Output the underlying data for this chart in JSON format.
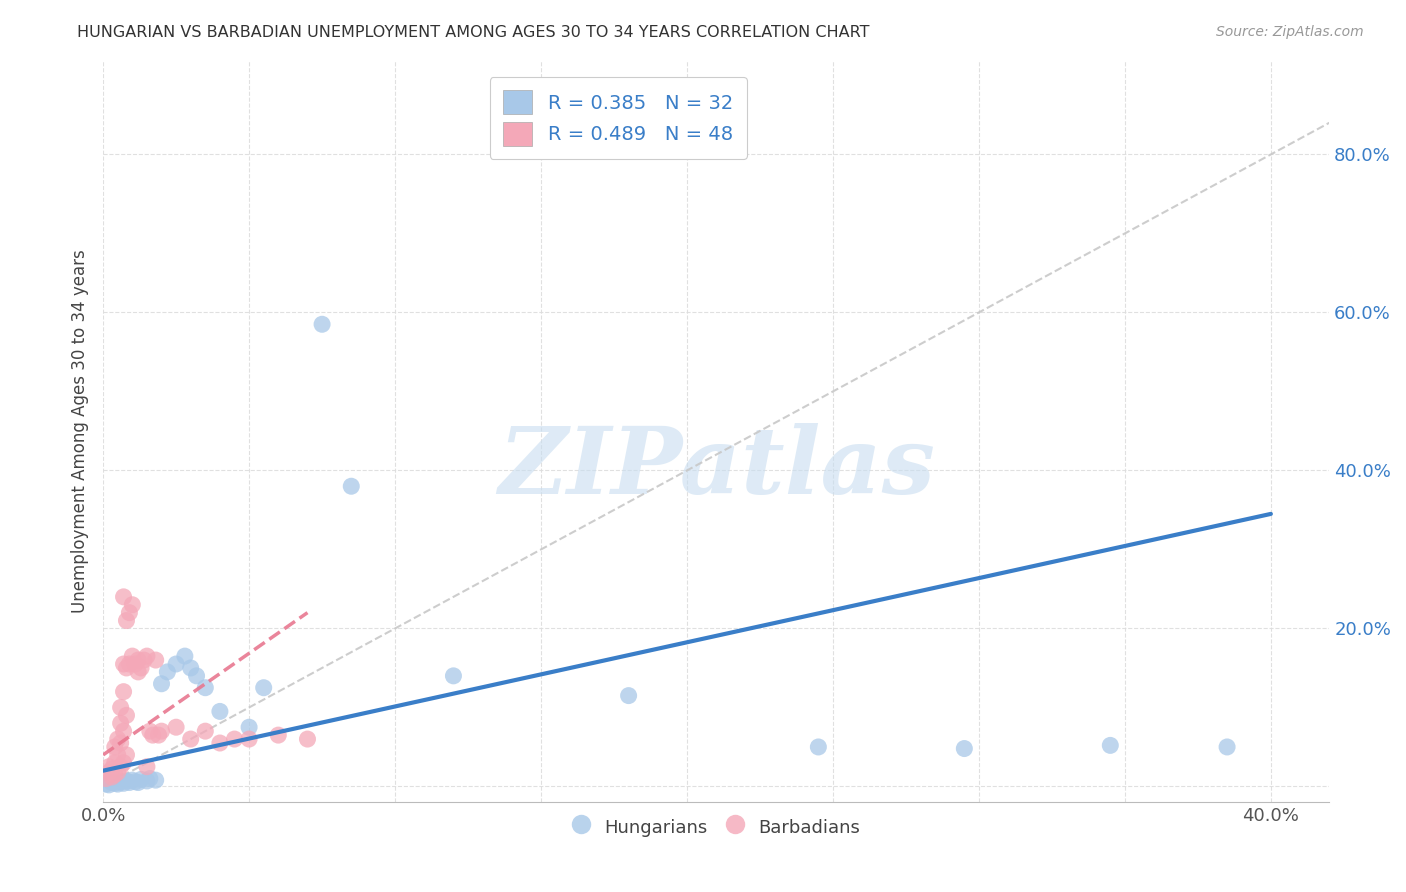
{
  "title": "HUNGARIAN VS BARBADIAN UNEMPLOYMENT AMONG AGES 30 TO 34 YEARS CORRELATION CHART",
  "source": "Source: ZipAtlas.com",
  "ylabel": "Unemployment Among Ages 30 to 34 years",
  "xlim": [
    0.0,
    0.42
  ],
  "ylim": [
    -0.02,
    0.92
  ],
  "xtick_positions": [
    0.0,
    0.05,
    0.1,
    0.15,
    0.2,
    0.25,
    0.3,
    0.35,
    0.4
  ],
  "xtick_labels": [
    "0.0%",
    "",
    "",
    "",
    "",
    "",
    "",
    "",
    "40.0%"
  ],
  "ytick_positions": [
    0.0,
    0.2,
    0.4,
    0.6,
    0.8
  ],
  "ytick_labels": [
    "",
    "20.0%",
    "40.0%",
    "60.0%",
    "80.0%"
  ],
  "hungarian_color": "#a8c8e8",
  "barbadian_color": "#f4a8b8",
  "hungarian_line_color": "#3a7ec8",
  "barbadian_line_color": "#e87890",
  "diagonal_color": "#c8c8c8",
  "tick_label_color": "#3a7ec8",
  "watermark_color": "#c8ddf0",
  "legend_text_color": "#3a7ec8",
  "legend_R_color": "#3a7ec8",
  "legend_N_color": "#e84040",
  "hungarian_points": [
    [
      0.001,
      0.003
    ],
    [
      0.002,
      0.002
    ],
    [
      0.003,
      0.005
    ],
    [
      0.004,
      0.004
    ],
    [
      0.005,
      0.003
    ],
    [
      0.006,
      0.006
    ],
    [
      0.007,
      0.004
    ],
    [
      0.008,
      0.007
    ],
    [
      0.009,
      0.005
    ],
    [
      0.01,
      0.008
    ],
    [
      0.011,
      0.006
    ],
    [
      0.012,
      0.005
    ],
    [
      0.013,
      0.009
    ],
    [
      0.015,
      0.007
    ],
    [
      0.016,
      0.01
    ],
    [
      0.018,
      0.008
    ],
    [
      0.02,
      0.13
    ],
    [
      0.022,
      0.145
    ],
    [
      0.025,
      0.155
    ],
    [
      0.028,
      0.165
    ],
    [
      0.03,
      0.15
    ],
    [
      0.032,
      0.14
    ],
    [
      0.035,
      0.125
    ],
    [
      0.04,
      0.095
    ],
    [
      0.05,
      0.075
    ],
    [
      0.055,
      0.125
    ],
    [
      0.075,
      0.585
    ],
    [
      0.085,
      0.38
    ],
    [
      0.12,
      0.14
    ],
    [
      0.18,
      0.115
    ],
    [
      0.245,
      0.05
    ],
    [
      0.295,
      0.048
    ],
    [
      0.345,
      0.052
    ],
    [
      0.385,
      0.05
    ]
  ],
  "barbadian_points": [
    [
      0.001,
      0.01
    ],
    [
      0.002,
      0.018
    ],
    [
      0.002,
      0.025
    ],
    [
      0.003,
      0.012
    ],
    [
      0.003,
      0.022
    ],
    [
      0.004,
      0.015
    ],
    [
      0.004,
      0.03
    ],
    [
      0.004,
      0.05
    ],
    [
      0.005,
      0.018
    ],
    [
      0.005,
      0.04
    ],
    [
      0.005,
      0.06
    ],
    [
      0.006,
      0.025
    ],
    [
      0.006,
      0.055
    ],
    [
      0.006,
      0.08
    ],
    [
      0.006,
      0.1
    ],
    [
      0.007,
      0.03
    ],
    [
      0.007,
      0.07
    ],
    [
      0.007,
      0.12
    ],
    [
      0.007,
      0.155
    ],
    [
      0.007,
      0.24
    ],
    [
      0.008,
      0.04
    ],
    [
      0.008,
      0.09
    ],
    [
      0.008,
      0.15
    ],
    [
      0.008,
      0.21
    ],
    [
      0.009,
      0.155
    ],
    [
      0.009,
      0.22
    ],
    [
      0.01,
      0.165
    ],
    [
      0.01,
      0.23
    ],
    [
      0.011,
      0.155
    ],
    [
      0.012,
      0.145
    ],
    [
      0.012,
      0.16
    ],
    [
      0.013,
      0.15
    ],
    [
      0.014,
      0.16
    ],
    [
      0.015,
      0.165
    ],
    [
      0.015,
      0.025
    ],
    [
      0.016,
      0.07
    ],
    [
      0.017,
      0.065
    ],
    [
      0.018,
      0.16
    ],
    [
      0.019,
      0.065
    ],
    [
      0.02,
      0.07
    ],
    [
      0.025,
      0.075
    ],
    [
      0.03,
      0.06
    ],
    [
      0.035,
      0.07
    ],
    [
      0.04,
      0.055
    ],
    [
      0.045,
      0.06
    ],
    [
      0.05,
      0.06
    ],
    [
      0.06,
      0.065
    ],
    [
      0.07,
      0.06
    ]
  ],
  "hun_line_x0": 0.0,
  "hun_line_y0": 0.02,
  "hun_line_x1": 0.4,
  "hun_line_y1": 0.345,
  "bar_line_x0": 0.0,
  "bar_line_y0": 0.04,
  "bar_line_x1": 0.07,
  "bar_line_y1": 0.22
}
